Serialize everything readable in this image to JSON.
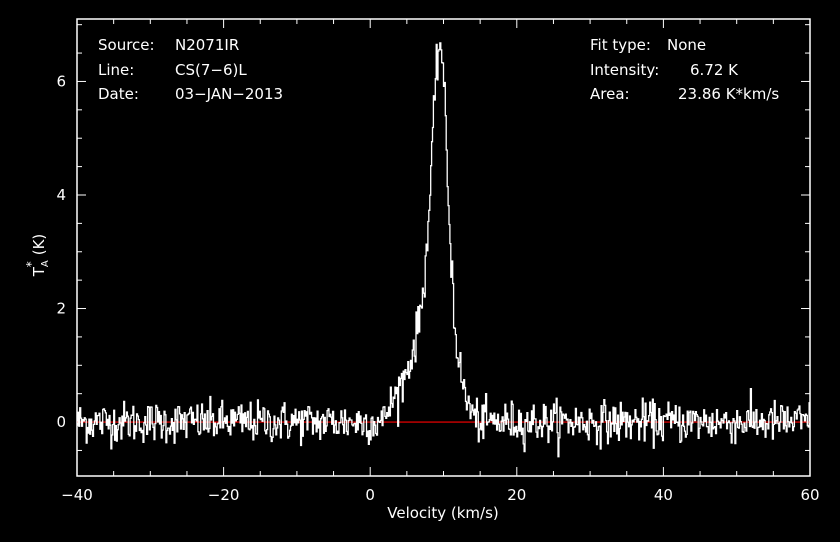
{
  "header_left": {
    "source_label": "Source:",
    "source_value": "N2071IR",
    "line_label": "Line:",
    "line_value": "CS(7−6)L",
    "date_label": "Date:",
    "date_value": "03−JAN−2013"
  },
  "header_right": {
    "fit_label": "Fit type:",
    "fit_value": "None",
    "intensity_label": "Intensity:",
    "intensity_value": "6.72 K",
    "area_label": "Area:",
    "area_value": "23.86 K*km/s"
  },
  "colors": {
    "background": "#000000",
    "foreground": "#ffffff",
    "baseline": "#ff0000"
  },
  "chart_data": {
    "type": "line",
    "title": "",
    "xlabel": "Velocity (km/s)",
    "ylabel_main": "T",
    "ylabel_sub": "A",
    "ylabel_sup": "*",
    "ylabel_unit": "(K)",
    "xlim": [
      -40,
      60
    ],
    "ylim": [
      -0.95,
      7.1
    ],
    "xticks": [
      -40,
      -20,
      0,
      20,
      40,
      60
    ],
    "xtick_labels": [
      "−40",
      "−20",
      "0",
      "20",
      "40",
      "60"
    ],
    "yticks": [
      0,
      2,
      4,
      6
    ],
    "ytick_labels": [
      "0",
      "2",
      "4",
      "6"
    ],
    "grid": false,
    "baseline_y": 0,
    "series": [
      {
        "style": "step",
        "color": "#ffffff",
        "x": [
          2,
          3,
          4,
          5,
          6,
          7,
          7.5,
          8,
          8.5,
          9,
          9.25,
          9.5,
          9.75,
          10,
          10.25,
          10.5,
          10.75,
          11,
          11.25,
          11.5,
          12,
          12.5,
          13,
          13.5,
          14,
          14.5,
          15
        ],
        "y": [
          0.12,
          0.35,
          0.6,
          0.9,
          1.3,
          2.05,
          2.7,
          3.6,
          4.9,
          6.05,
          6.5,
          6.72,
          6.55,
          6.1,
          5.4,
          4.5,
          3.7,
          3.0,
          2.5,
          1.75,
          1.2,
          0.72,
          0.45,
          0.28,
          0.14,
          0.05,
          0.0
        ]
      }
    ],
    "noise_rms": 0.18
  }
}
